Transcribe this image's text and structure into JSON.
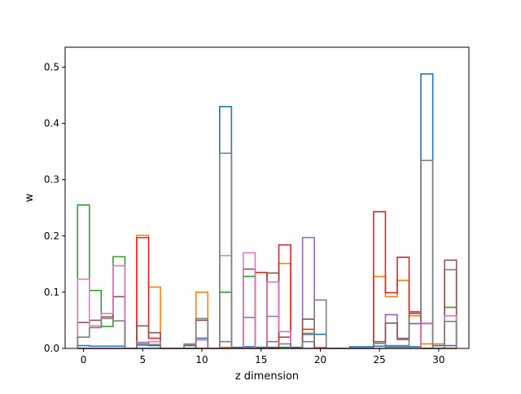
{
  "chart_data": {
    "type": "step",
    "xlabel": "z dimension",
    "ylabel": "w",
    "xlim": [
      -1.55,
      32.55
    ],
    "ylim": [
      0,
      0.5355
    ],
    "xticks": [
      0,
      5,
      10,
      15,
      20,
      25,
      30
    ],
    "yticks": [
      0.0,
      0.1,
      0.2,
      0.3,
      0.4,
      0.5
    ],
    "ytick_labels": [
      "0.0",
      "0.1",
      "0.2",
      "0.3",
      "0.4",
      "0.5"
    ],
    "grid": false,
    "colors": [
      "#1f77b4",
      "#ff7f0e",
      "#2ca02c",
      "#d62728",
      "#9467bd",
      "#8c564b",
      "#e377c2",
      "#7f7f7f"
    ],
    "x": [
      0,
      1,
      2,
      3,
      4,
      5,
      6,
      7,
      8,
      9,
      10,
      11,
      12,
      13,
      14,
      15,
      16,
      17,
      18,
      19,
      20,
      21,
      22,
      23,
      24,
      25,
      26,
      27,
      28,
      29,
      30,
      31
    ],
    "series": [
      {
        "values": [
          0.005,
          0.004,
          0.004,
          0.004,
          0.0,
          0.006,
          0.005,
          0.0,
          0.0,
          0.005,
          0.018,
          0.0,
          0.43,
          0.002,
          0.003,
          0.002,
          0.002,
          0.002,
          0.002,
          0.025,
          0.025,
          0.0,
          0.0,
          0.003,
          0.003,
          0.004,
          0.003,
          0.003,
          0.003,
          0.488,
          0.005,
          0.005
        ]
      },
      {
        "values": [
          0.0,
          0.0,
          0.0,
          0.0,
          0.0,
          0.201,
          0.109,
          0.0,
          0.0,
          0.0,
          0.1,
          0.0,
          0.002,
          0.0,
          0.0,
          0.0,
          0.0,
          0.151,
          0.0,
          0.027,
          0.002,
          0.0,
          0.0,
          0.0,
          0.0,
          0.128,
          0.092,
          0.121,
          0.058,
          0.008,
          0.008,
          0.0
        ]
      },
      {
        "values": [
          0.255,
          0.103,
          0.039,
          0.163,
          0.0,
          0.0,
          0.0,
          0.0,
          0.0,
          0.0,
          0.0,
          0.0,
          0.1,
          0.0,
          0.128,
          0.0,
          0.0,
          0.0,
          0.0,
          0.0,
          0.0,
          0.0,
          0.0,
          0.0,
          0.0,
          0.0,
          0.0,
          0.0,
          0.0,
          0.0,
          0.0,
          0.073
        ]
      },
      {
        "values": [
          0.0,
          0.0,
          0.0,
          0.0,
          0.0,
          0.197,
          0.018,
          0.0,
          0.0,
          0.0,
          0.0,
          0.0,
          0.0,
          0.0,
          0.0,
          0.135,
          0.0,
          0.184,
          0.0,
          0.034,
          0.0,
          0.0,
          0.0,
          0.0,
          0.0,
          0.243,
          0.099,
          0.162,
          0.065,
          0.0,
          0.0,
          0.0
        ]
      },
      {
        "values": [
          0.0,
          0.0,
          0.0,
          0.0,
          0.0,
          0.0,
          0.0,
          0.0,
          0.0,
          0.0,
          0.0,
          0.0,
          0.012,
          0.0,
          0.055,
          0.0,
          0.057,
          0.03,
          0.0,
          0.197,
          0.0,
          0.0,
          0.0,
          0.0,
          0.0,
          0.0,
          0.06,
          0.018,
          0.044,
          0.044,
          0.0,
          0.14
        ]
      },
      {
        "values": [
          0.046,
          0.05,
          0.056,
          0.092,
          0.0,
          0.04,
          0.028,
          0.0,
          0.0,
          0.0,
          0.05,
          0.0,
          0.0,
          0.0,
          0.141,
          0.0,
          0.134,
          0.02,
          0.0,
          0.052,
          0.0,
          0.0,
          0.0,
          0.0,
          0.0,
          0.012,
          0.045,
          0.016,
          0.062,
          0.0,
          0.0,
          0.157
        ]
      },
      {
        "values": [
          0.123,
          0.04,
          0.062,
          0.147,
          0.0,
          0.011,
          0.012,
          0.0,
          0.0,
          0.008,
          0.015,
          0.0,
          0.165,
          0.0,
          0.17,
          0.0,
          0.118,
          0.03,
          0.0,
          0.0,
          0.0,
          0.0,
          0.0,
          0.0,
          0.0,
          0.0,
          0.0,
          0.0,
          0.0,
          0.045,
          0.0,
          0.058
        ]
      },
      {
        "values": [
          0.02,
          0.037,
          0.053,
          0.049,
          0.0,
          0.009,
          0.007,
          0.0,
          0.0,
          0.007,
          0.053,
          0.0,
          0.347,
          0.0,
          0.0,
          0.0,
          0.012,
          0.008,
          0.0,
          0.012,
          0.086,
          0.0,
          0.0,
          0.0,
          0.0,
          0.009,
          0.005,
          0.005,
          0.044,
          0.334,
          0.0,
          0.048
        ]
      }
    ]
  }
}
